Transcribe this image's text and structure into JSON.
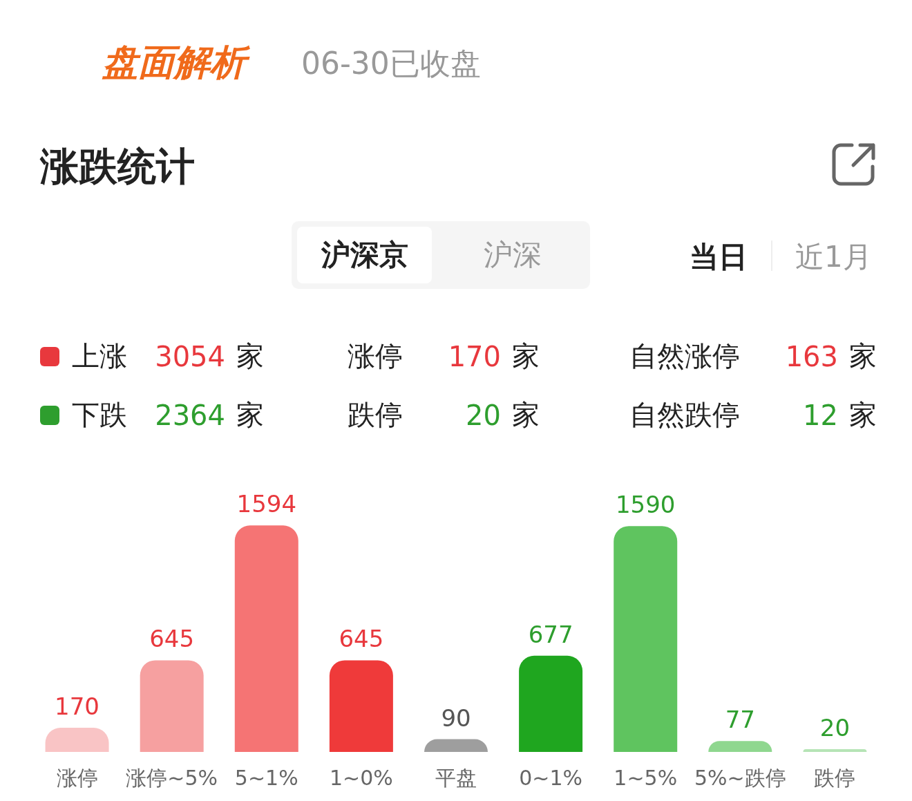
{
  "chart_data": {
    "type": "bar",
    "title": "盘面解析",
    "subtitle": "06-30已收盘",
    "annotations": [
      "涨跌统计",
      "沪深京",
      "沪深",
      "当日",
      "近1月",
      "上涨 3054 家",
      "涨停 170 家",
      "自然涨停 163 家",
      "下跌 2364 家",
      "跌停 20 家",
      "自然跌停 12 家"
    ],
    "categories": [
      "涨停",
      "涨停~5%",
      "5~1%",
      "1~0%",
      "平盘",
      "0~1%",
      "1~5%",
      "5%~跌停",
      "跌停"
    ],
    "values": [
      170,
      645,
      1594,
      645,
      90,
      677,
      1590,
      77,
      20
    ],
    "colors": [
      "#f9c4c5",
      "#f6a0a0",
      "#f57474",
      "#ef3a3a",
      "#9e9e9e",
      "#1fa61f",
      "#5fc45f",
      "#8fd78f",
      "#b6e4b6"
    ],
    "data_labels": true
  }
}
